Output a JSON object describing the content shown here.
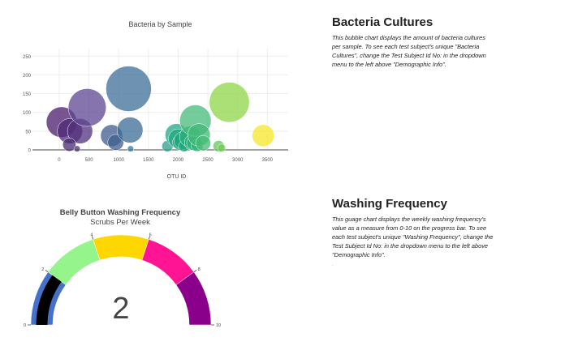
{
  "bubble_section": {
    "heading": "Bacteria Cultures",
    "description": "This bubble chart displays the amount of bacteria cultures per sample. To see each test subject's unique \"Bacteria Cultures\", change the Test Subject Id No: in the dropdown menu to the left above \"Demographic Info\"."
  },
  "gauge_section": {
    "heading": "Washing Frequency",
    "description": "This guage chart displays the weekly washing frequency's value as a measure from 0-10 on the progress bar. To see each test subject's unique \"Washing Frequency\", change the Test Subject Id No: in the dropdown menu to the left above \"Demographic Info\".",
    "trailing_mark": "."
  },
  "chart_data": [
    {
      "type": "scatter",
      "title": "Bacteria by Sample",
      "xlabel": "OTU ID",
      "ylabel": "",
      "xlim": [
        -450,
        3850
      ],
      "ylim": [
        0,
        270
      ],
      "xticks": [
        0,
        500,
        1000,
        1500,
        2000,
        2500,
        3000,
        3500
      ],
      "yticks": [
        0,
        50,
        100,
        150,
        200,
        250
      ],
      "grid": true,
      "legend": "none",
      "points": [
        {
          "x": 40,
          "y": 74,
          "size": 74,
          "color": "#4b1b6b"
        },
        {
          "x": 180,
          "y": 50,
          "size": 50,
          "color": "#4d2a78"
        },
        {
          "x": 350,
          "y": 50,
          "size": 50,
          "color": "#51307e"
        },
        {
          "x": 470,
          "y": 113,
          "size": 113,
          "color": "#5e4593"
        },
        {
          "x": 170,
          "y": 14,
          "size": 14,
          "color": "#482a6f"
        },
        {
          "x": 300,
          "y": 3,
          "size": 3,
          "color": "#47326f"
        },
        {
          "x": 880,
          "y": 38,
          "size": 38,
          "color": "#3e5b8f"
        },
        {
          "x": 950,
          "y": 20,
          "size": 20,
          "color": "#3f5d8e"
        },
        {
          "x": 1167,
          "y": 163,
          "size": 163,
          "color": "#3e6e98"
        },
        {
          "x": 1190,
          "y": 53,
          "size": 53,
          "color": "#3a6b96"
        },
        {
          "x": 1200,
          "y": 3,
          "size": 3,
          "color": "#3a7a98"
        },
        {
          "x": 1820,
          "y": 10,
          "size": 10,
          "color": "#2d9c8b"
        },
        {
          "x": 1970,
          "y": 40,
          "size": 40,
          "color": "#22a785"
        },
        {
          "x": 2000,
          "y": 30,
          "size": 30,
          "color": "#22a782"
        },
        {
          "x": 2040,
          "y": 20,
          "size": 20,
          "color": "#1fa880"
        },
        {
          "x": 2080,
          "y": 25,
          "size": 25,
          "color": "#22a87f"
        },
        {
          "x": 2100,
          "y": 10,
          "size": 10,
          "color": "#20a77d"
        },
        {
          "x": 2200,
          "y": 35,
          "size": 35,
          "color": "#2aae7d"
        },
        {
          "x": 2240,
          "y": 20,
          "size": 20,
          "color": "#2cb07b"
        },
        {
          "x": 2270,
          "y": 18,
          "size": 18,
          "color": "#2eb27a"
        },
        {
          "x": 2290,
          "y": 78,
          "size": 78,
          "color": "#45b97a"
        },
        {
          "x": 2320,
          "y": 12,
          "size": 12,
          "color": "#34b577"
        },
        {
          "x": 2350,
          "y": 40,
          "size": 40,
          "color": "#40b977"
        },
        {
          "x": 2420,
          "y": 18,
          "size": 18,
          "color": "#44bb73"
        },
        {
          "x": 2680,
          "y": 10,
          "size": 10,
          "color": "#62c75a"
        },
        {
          "x": 2730,
          "y": 5,
          "size": 5,
          "color": "#74cb50"
        },
        {
          "x": 2860,
          "y": 127,
          "size": 127,
          "color": "#8fd64a"
        },
        {
          "x": 3430,
          "y": 38,
          "size": 38,
          "color": "#f5e52a"
        }
      ]
    },
    {
      "type": "gauge",
      "title": "Belly Button Washing Frequency",
      "subtitle": "Scrubs Per Week",
      "value": 2,
      "range": [
        0,
        10
      ],
      "ticks": [
        0,
        2,
        4,
        6,
        8,
        10
      ],
      "value_color": "#000000",
      "steps": [
        {
          "from": 0,
          "to": 2,
          "color": "#4472ca"
        },
        {
          "from": 2,
          "to": 4,
          "color": "#95f58c"
        },
        {
          "from": 4,
          "to": 6,
          "color": "#ffd700"
        },
        {
          "from": 6,
          "to": 8,
          "color": "#ff1493"
        },
        {
          "from": 8,
          "to": 10,
          "color": "#8b008b"
        }
      ]
    }
  ]
}
